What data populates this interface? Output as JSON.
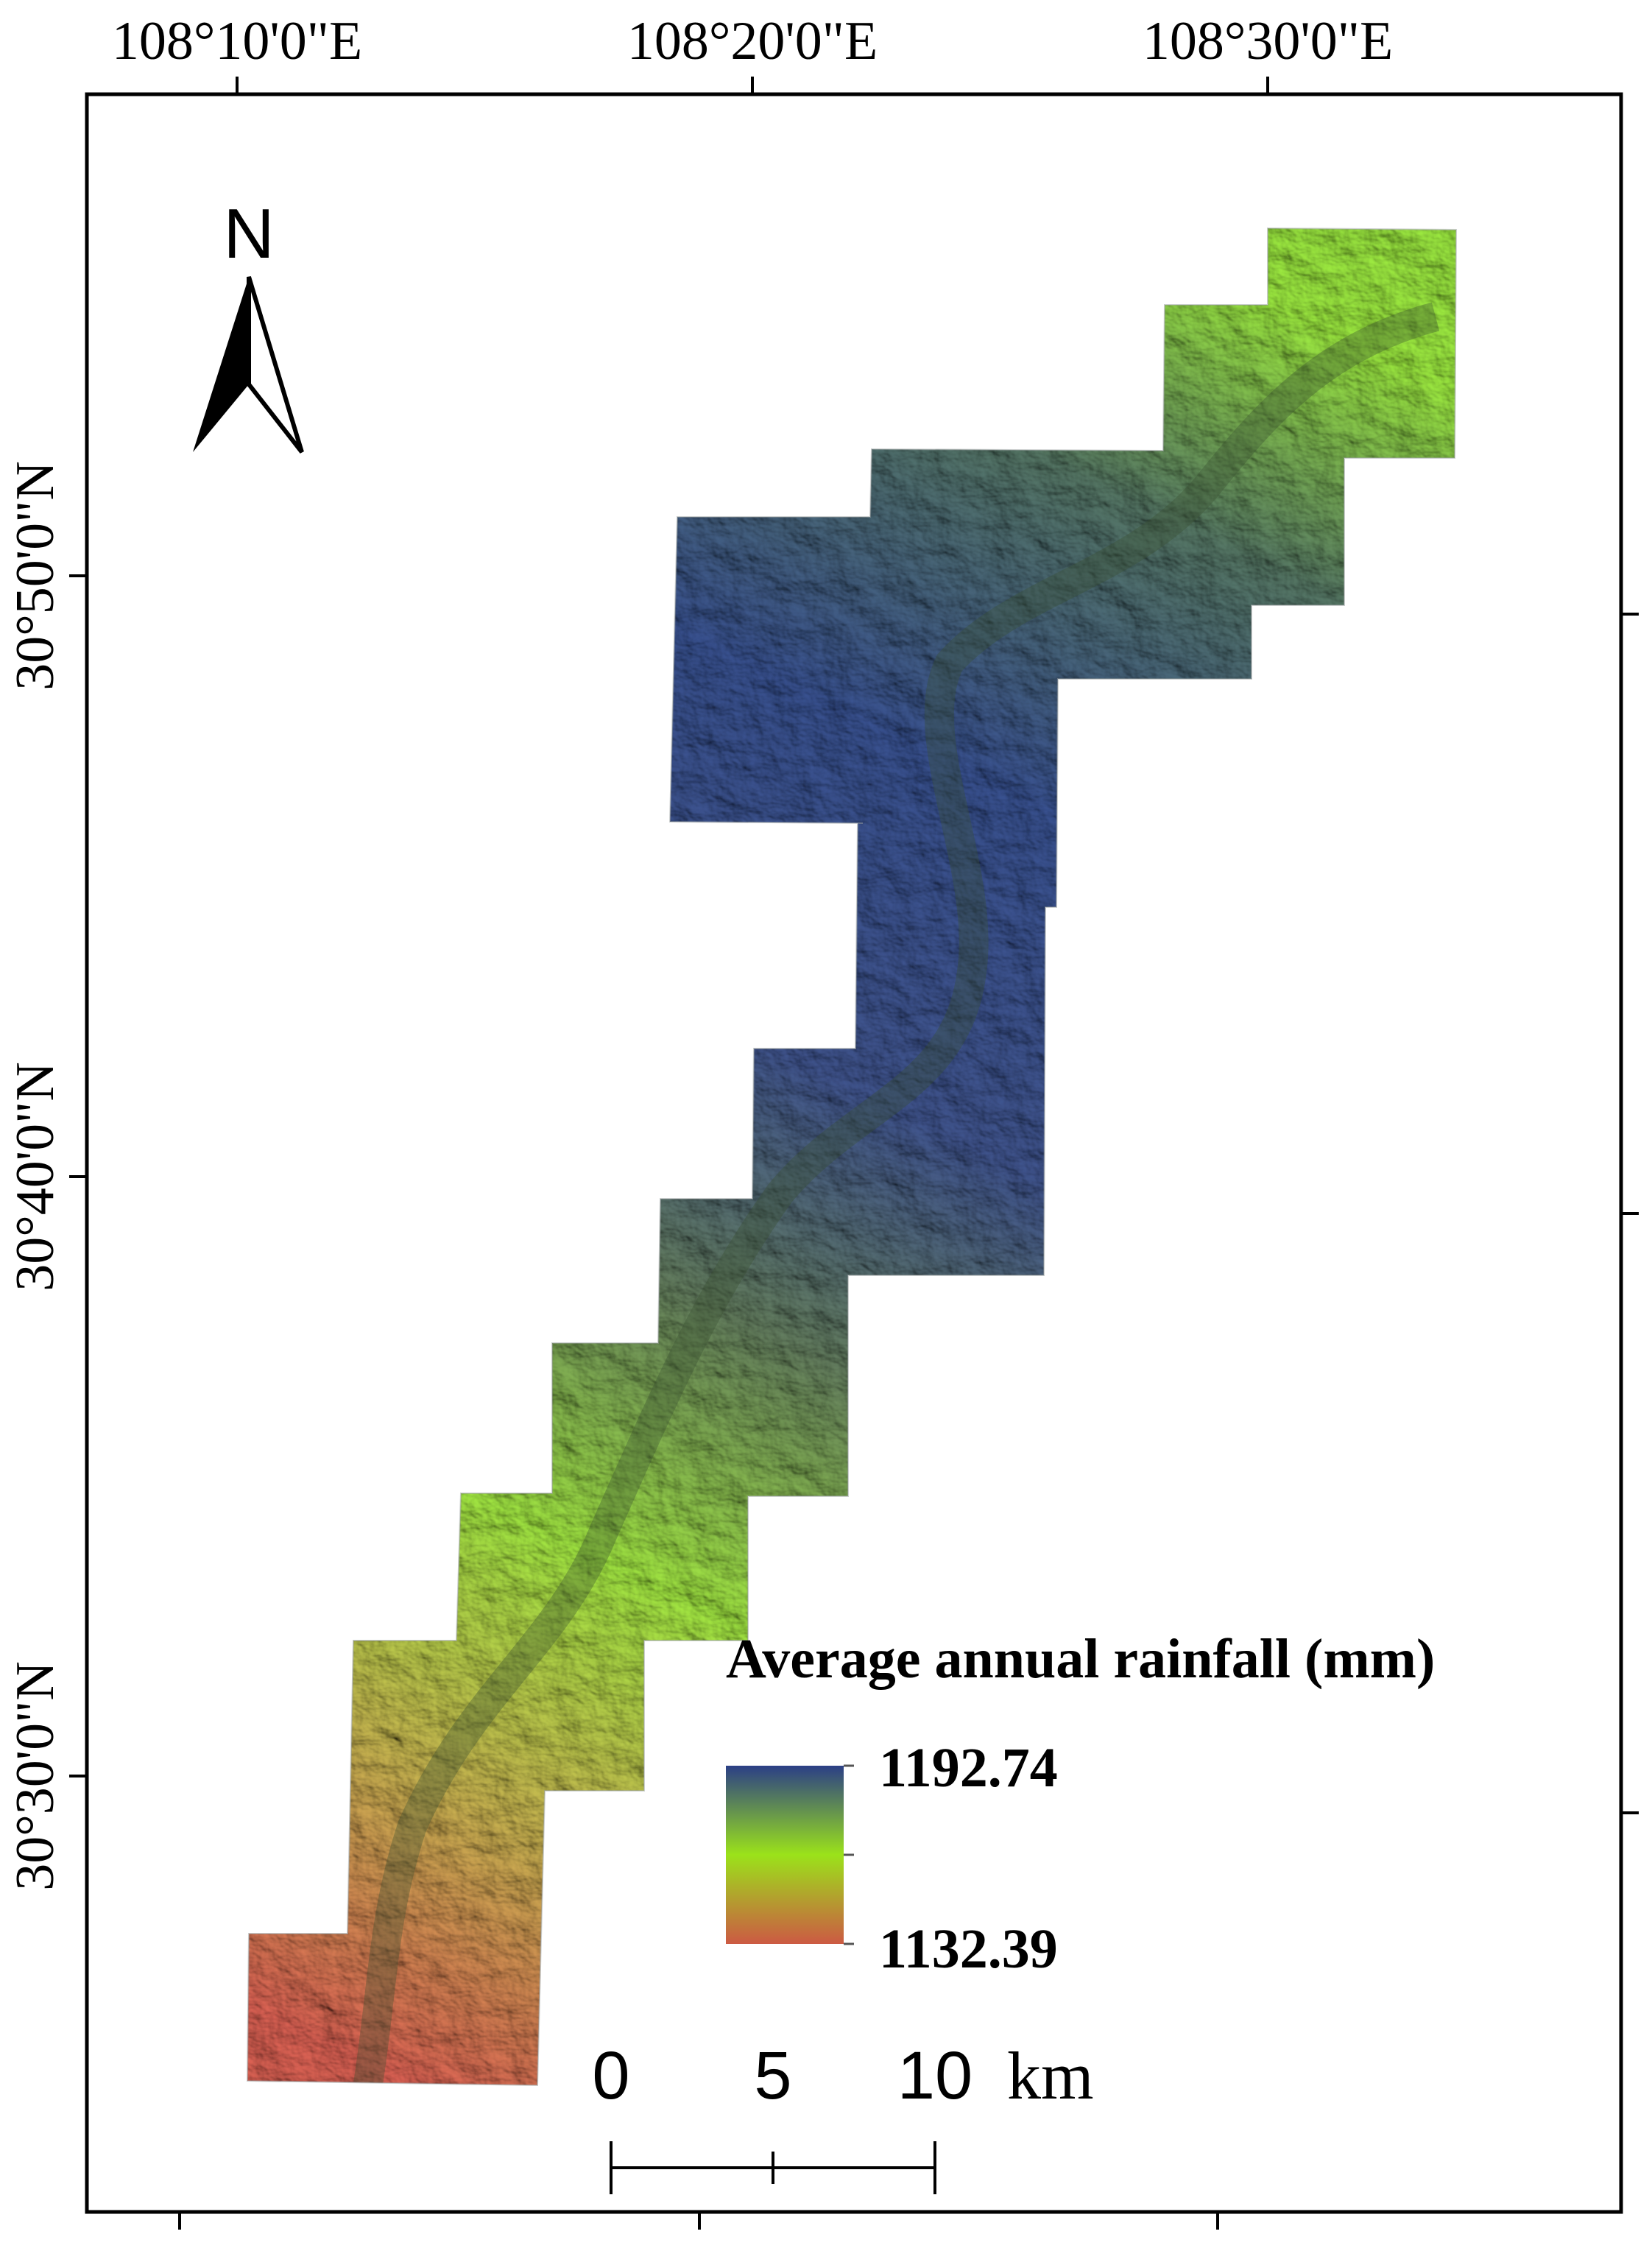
{
  "map": {
    "top_longitude_labels": [
      "108°10'0\"E",
      "108°20'0\"E",
      "108°30'0\"E"
    ],
    "left_latitude_labels": [
      "30°50'0\"N",
      "30°40'0\"N",
      "30°30'0\"N"
    ],
    "north_arrow": {
      "letter": "N",
      "icon": "north-arrow-icon"
    }
  },
  "legend": {
    "title": "Average annual rainfall (mm)",
    "max_value": "1192.74",
    "min_value": "1132.39",
    "colors": {
      "high": "#2b3f86",
      "mid": "#9be21a",
      "low": "#cc5a43"
    }
  },
  "scale_bar": {
    "labels": [
      "0",
      "5",
      "10"
    ],
    "unit": "km"
  }
}
